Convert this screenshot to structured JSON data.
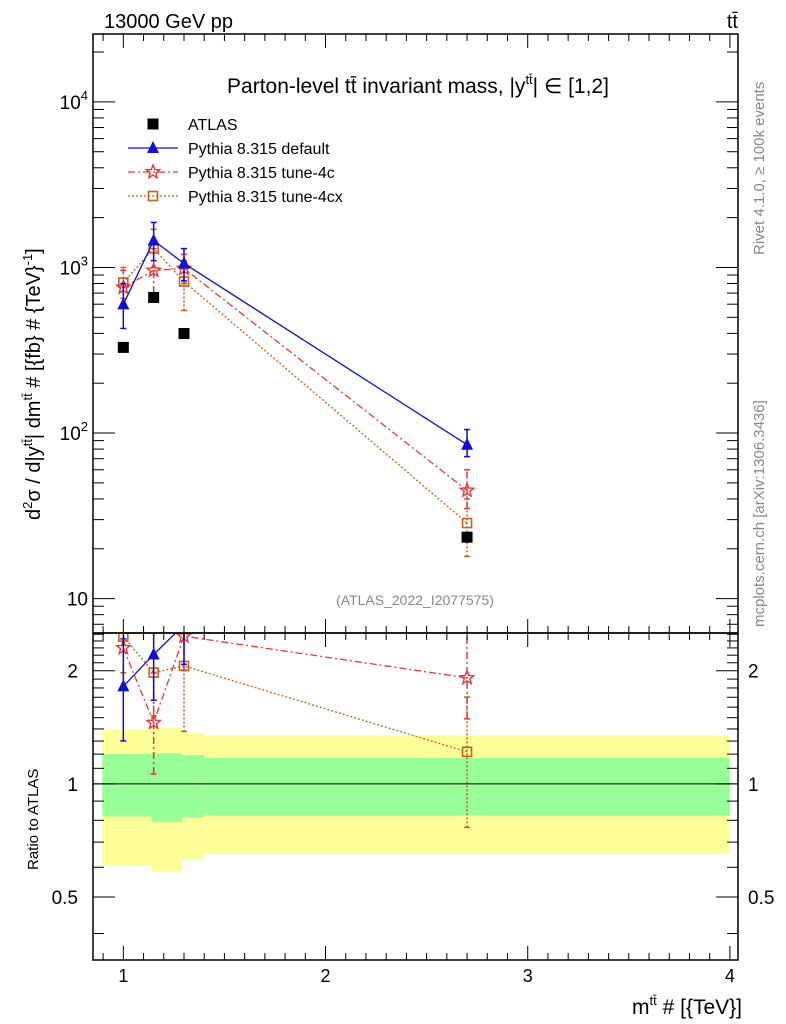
{
  "header": {
    "left": "13000 GeV pp",
    "right": "tt̄"
  },
  "side": {
    "top": "Rivet 4.1.0, ≥ 100k events",
    "bottom": "mcplots.cern.ch [arXiv:1306.3436]"
  },
  "watermark": "(ATLAS_2022_I2077575)",
  "chart_data": {
    "type": "scatter",
    "title": "Parton-level tt̄ invariant mass, |y^tt̄| ∈ [1,2]",
    "title_main": "Parton-level tt̄ invariant mass, |y",
    "title_sup": "tt̄",
    "title_tail": "| ∈ [1,2]",
    "ylabel": "d²σ / d|y^tt̄| dm^tt̄ # [{fb} # {TeV}^-1]",
    "ylabel_parts": [
      "d",
      "2",
      "σ / d|y",
      "tt̄",
      "| dm",
      "tt̄",
      " # [{fb} # {TeV}",
      "-1",
      "]"
    ],
    "xlabel": "m^tt̄ # [{TeV}]",
    "xlabel_parts": [
      "m",
      "tt̄",
      " # [{TeV}]"
    ],
    "ratio_ylabel": "Ratio to ATLAS",
    "xlim": [
      0.85,
      4.04
    ],
    "ylim": [
      6.2,
      25700
    ],
    "yscale": "log",
    "ratio_ylim": [
      0.34,
      2.52
    ],
    "ratio_yscale": "log",
    "xticks": [
      "1",
      "2",
      "3",
      "4"
    ],
    "yticks": [
      {
        "v": 10,
        "base": "10",
        "exp": ""
      },
      {
        "v": 100,
        "base": "10",
        "exp": "2"
      },
      {
        "v": 1000,
        "base": "10",
        "exp": "3"
      },
      {
        "v": 10000,
        "base": "10",
        "exp": "4"
      }
    ],
    "ratio_yticks": [
      "0.5",
      "1",
      "2"
    ],
    "legend_position": "top-left",
    "x": [
      1.0,
      1.15,
      1.3,
      2.7
    ],
    "series": [
      {
        "name": "ATLAS",
        "color": "#000000",
        "marker": "square",
        "line": "none",
        "values": [
          329,
          659,
          399,
          23.5
        ],
        "err": [
          null,
          null,
          null,
          null
        ]
      },
      {
        "name": "Pythia 8.315 default",
        "color": "#1010d0",
        "marker": "triangle",
        "line": "solid",
        "values": [
          598,
          1456,
          1057,
          85
        ],
        "err": [
          [
            428,
            800
          ],
          [
            1100,
            1870
          ],
          [
            830,
            1300
          ],
          [
            72,
            105
          ]
        ]
      },
      {
        "name": "Pythia 8.315 tune-4c",
        "color": "#e03a3a",
        "marker": "star",
        "line": "dashdot",
        "values": [
          757,
          959,
          986,
          45
        ],
        "err": [
          [
            600,
            960
          ],
          [
            700,
            1300
          ],
          [
            800,
            1200
          ],
          [
            35,
            60
          ]
        ]
      },
      {
        "name": "Pythia 8.315 tune-4cx",
        "color": "#c8601e",
        "marker": "opensquare",
        "line": "dotted",
        "values": [
          811,
          1303,
          822,
          28.6
        ],
        "err": [
          [
            650,
            1000
          ],
          [
            1000,
            1700
          ],
          [
            550,
            1100
          ],
          [
            18,
            40
          ]
        ]
      }
    ],
    "bands": {
      "edges": [
        0.896,
        1.14,
        1.29,
        1.4,
        4.0
      ],
      "yellow": [
        [
          0.605,
          1.392
        ],
        [
          0.585,
          1.408
        ],
        [
          0.627,
          1.369
        ],
        [
          0.652,
          1.346
        ]
      ],
      "green": [
        [
          0.819,
          1.2
        ],
        [
          0.791,
          1.207
        ],
        [
          0.814,
          1.193
        ],
        [
          0.824,
          1.173
        ]
      ],
      "yellow_color": "#ffff99",
      "green_color": "#99ff99"
    }
  }
}
